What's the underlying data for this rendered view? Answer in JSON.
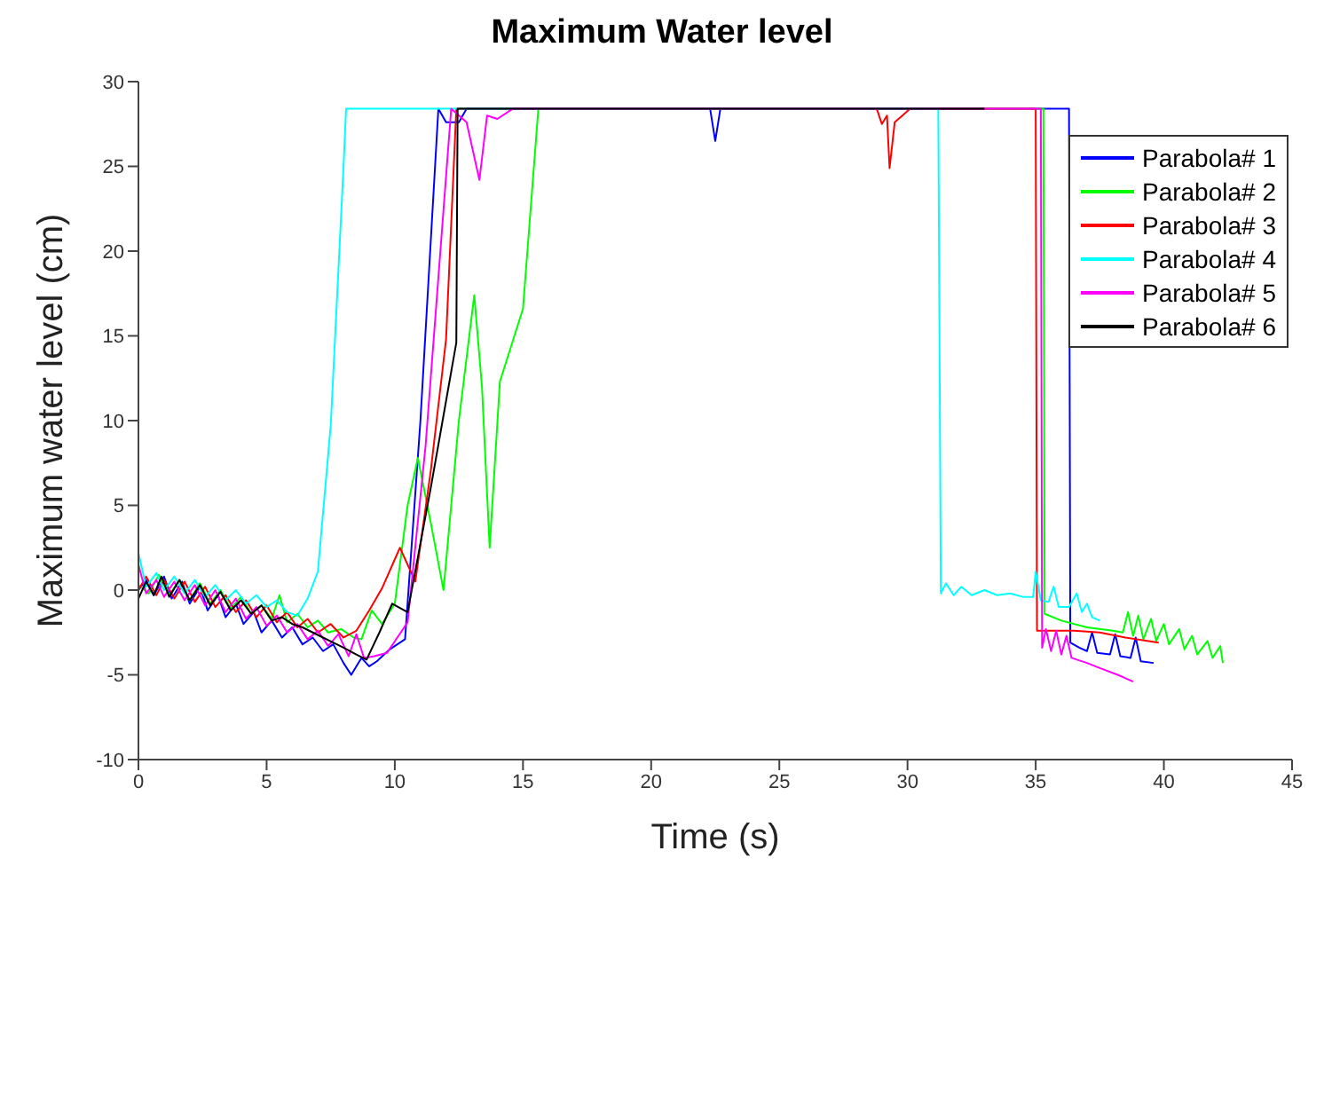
{
  "chart_data": {
    "type": "line",
    "title": "Maximum Water level",
    "xlabel": "Time (s)",
    "ylabel": "Maximum water level (cm)",
    "xlim": [
      0,
      45
    ],
    "xticks": [
      0,
      5,
      10,
      15,
      20,
      25,
      30,
      35,
      40,
      45
    ],
    "ylim": [
      -10,
      30
    ],
    "yticks": [
      -10,
      -5,
      0,
      5,
      10,
      15,
      20,
      25,
      30
    ],
    "grid": false,
    "legend": "top right",
    "marker": "none",
    "line_style": "solid",
    "series": [
      {
        "name": "Parabola# 1",
        "color": "#0000ff",
        "x": [
          0,
          0.3,
          0.6,
          1.0,
          1.3,
          1.7,
          2.0,
          2.4,
          2.7,
          3.1,
          3.4,
          3.8,
          4.1,
          4.5,
          4.8,
          5.2,
          5.6,
          6.0,
          6.4,
          6.8,
          7.2,
          7.6,
          8.0,
          8.3,
          8.7,
          9.0,
          9.3,
          9.8,
          10.4,
          11.0,
          11.7,
          12.0,
          12.5,
          12.8,
          22.3,
          22.5,
          22.7,
          36.3,
          36.35,
          36.7,
          37.0,
          37.2,
          37.4,
          37.9,
          38.1,
          38.3,
          38.7,
          38.9,
          39.1,
          39.6
        ],
        "values": [
          0,
          0.6,
          -0.3,
          0.8,
          -0.5,
          0.5,
          -0.8,
          0.2,
          -1.2,
          -0.3,
          -1.6,
          -0.8,
          -2.0,
          -1.3,
          -2.5,
          -1.8,
          -2.8,
          -2.2,
          -3.2,
          -2.8,
          -3.6,
          -3.2,
          -4.3,
          -5.0,
          -4.0,
          -4.5,
          -4.2,
          -3.5,
          -2.9,
          10,
          28.4,
          27.6,
          27.6,
          28.4,
          28.4,
          26.5,
          28.4,
          28.4,
          -3.1,
          -3.4,
          -3.6,
          -2.5,
          -3.7,
          -3.8,
          -2.6,
          -3.9,
          -4.0,
          -2.8,
          -4.2,
          -4.3
        ]
      },
      {
        "name": "Parabola# 2",
        "color": "#00ff00",
        "x": [
          0,
          0.4,
          0.8,
          1.2,
          1.6,
          2.0,
          2.4,
          2.8,
          3.2,
          3.6,
          4.0,
          4.4,
          4.8,
          5.2,
          5.5,
          5.8,
          6.2,
          6.6,
          7.0,
          7.4,
          7.9,
          8.4,
          8.7,
          9.1,
          9.5,
          10.0,
          10.5,
          10.9,
          11.4,
          11.9,
          12.5,
          13.1,
          13.4,
          13.7,
          14.1,
          15.0,
          15.6,
          35.3,
          35.35,
          36.0,
          37.0,
          38.0,
          38.4,
          38.6,
          38.8,
          39.0,
          39.2,
          39.5,
          39.7,
          40.0,
          40.2,
          40.6,
          40.8,
          41.1,
          41.3,
          41.7,
          41.9,
          42.2,
          42.3
        ],
        "values": [
          0.3,
          -0.2,
          0.9,
          -0.3,
          0.6,
          -0.6,
          0.4,
          -0.8,
          0,
          -1.1,
          -0.4,
          -1.4,
          -0.9,
          -1.7,
          -0.3,
          -1.9,
          -1.4,
          -2.2,
          -1.8,
          -2.5,
          -2.3,
          -2.8,
          -2.9,
          -1.2,
          -2.0,
          -0.8,
          5,
          7.8,
          4,
          0,
          10,
          17.4,
          12,
          2.5,
          12.3,
          16.6,
          28.4,
          28.4,
          -1.4,
          -1.8,
          -2.2,
          -2.4,
          -2.5,
          -1.3,
          -2.7,
          -1.5,
          -2.9,
          -1.7,
          -3.0,
          -2.0,
          -3.2,
          -2.3,
          -3.5,
          -2.7,
          -3.8,
          -3.0,
          -4.0,
          -3.3,
          -4.3
        ]
      },
      {
        "name": "Parabola# 3",
        "color": "#ff0000",
        "x": [
          0,
          0.3,
          0.7,
          1.0,
          1.4,
          1.8,
          2.2,
          2.6,
          3.0,
          3.4,
          3.8,
          4.2,
          4.6,
          5.0,
          5.4,
          5.8,
          6.2,
          6.6,
          7.0,
          7.5,
          8.0,
          8.5,
          9.0,
          9.5,
          10.2,
          10.8,
          11.4,
          12.0,
          12.4,
          28.8,
          29.0,
          29.2,
          29.3,
          29.5,
          29.8,
          30.1,
          35.0,
          35.05,
          36.5,
          37.5,
          38.5,
          39.8
        ],
        "values": [
          0,
          0.8,
          -0.3,
          0.6,
          -0.5,
          0.5,
          -0.7,
          0.2,
          -1.0,
          -0.3,
          -1.3,
          -0.6,
          -1.6,
          -0.9,
          -1.9,
          -1.3,
          -2.2,
          -1.7,
          -2.5,
          -2.0,
          -2.8,
          -2.4,
          -1.2,
          0.1,
          2.5,
          0.5,
          7,
          14.8,
          28.4,
          28.4,
          27.5,
          28.0,
          24.9,
          27.6,
          28.0,
          28.4,
          28.4,
          -2.4,
          -2.4,
          -2.5,
          -2.8,
          -3.1
        ]
      },
      {
        "name": "Parabola# 4",
        "color": "#00ffff",
        "x": [
          0,
          0.3,
          0.7,
          1.0,
          1.4,
          1.8,
          2.2,
          2.6,
          3.0,
          3.4,
          3.8,
          4.2,
          4.6,
          5.0,
          5.4,
          5.8,
          6.2,
          6.6,
          7.0,
          7.5,
          8.0,
          8.1,
          31.2,
          31.3,
          31.5,
          31.8,
          32.1,
          32.5,
          33.0,
          33.5,
          34.0,
          34.5,
          34.9,
          35.0,
          35.2,
          35.5,
          35.7,
          35.9,
          36.3,
          36.6,
          36.8,
          37.0,
          37.2,
          37.5
        ],
        "values": [
          2.2,
          0.2,
          1.0,
          0,
          0.8,
          -0.2,
          0.6,
          -0.4,
          0.3,
          -0.6,
          0,
          -0.8,
          -0.3,
          -1.0,
          -0.6,
          -1.3,
          -1.5,
          -0.5,
          1.1,
          9.7,
          25,
          28.4,
          28.4,
          -0.2,
          0.4,
          -0.3,
          0.2,
          -0.3,
          0,
          -0.3,
          -0.2,
          -0.4,
          -0.4,
          1.1,
          -0.6,
          -0.7,
          0.2,
          -1.0,
          -1.0,
          -0.2,
          -1.3,
          -0.8,
          -1.6,
          -1.8
        ]
      },
      {
        "name": "Parabola# 5",
        "color": "#ff00ff",
        "x": [
          0,
          0.3,
          0.7,
          1.0,
          1.4,
          1.8,
          2.2,
          2.6,
          3.0,
          3.4,
          3.8,
          4.2,
          4.6,
          5.0,
          5.4,
          5.8,
          6.2,
          6.6,
          7.0,
          7.4,
          7.8,
          8.2,
          8.5,
          8.8,
          9.2,
          9.7,
          10.5,
          11.2,
          12.2,
          12.8,
          13.3,
          13.6,
          14.0,
          14.6,
          35.2,
          35.25,
          35.4,
          35.6,
          35.8,
          36.0,
          36.2,
          36.4,
          37.0,
          37.5,
          38.2,
          38.8
        ],
        "values": [
          1.5,
          -0.2,
          0.6,
          -0.4,
          0.5,
          -0.6,
          0.3,
          -0.9,
          0,
          -1.3,
          -0.5,
          -1.7,
          -1.0,
          -2.1,
          -1.5,
          -2.5,
          -2.0,
          -2.9,
          -2.4,
          -3.3,
          -2.6,
          -3.9,
          -2.6,
          -4.0,
          -3.9,
          -3.7,
          -1.9,
          8.5,
          28.4,
          27.6,
          24.2,
          28.0,
          27.8,
          28.4,
          28.4,
          -3.4,
          -2.3,
          -3.6,
          -2.4,
          -3.8,
          -2.7,
          -4.0,
          -4.3,
          -4.6,
          -5.0,
          -5.4
        ]
      },
      {
        "name": "Parabola# 6",
        "color": "#000000",
        "x": [
          0,
          0.3,
          0.6,
          0.9,
          1.2,
          1.6,
          2.0,
          2.4,
          2.8,
          3.2,
          3.6,
          4.0,
          4.4,
          4.8,
          5.2,
          5.6,
          6.0,
          6.4,
          6.8,
          7.2,
          7.6,
          8.0,
          8.5,
          8.9,
          9.4,
          9.9,
          10.5,
          11.4,
          12.4,
          12.45,
          33.0
        ],
        "values": [
          -0.5,
          0.5,
          -0.3,
          0.8,
          -0.4,
          0.6,
          -0.6,
          0.3,
          -0.9,
          -0.1,
          -1.2,
          -0.6,
          -1.4,
          -0.9,
          -1.8,
          -1.6,
          -2.0,
          -2.2,
          -2.5,
          -2.8,
          -3.1,
          -3.4,
          -3.8,
          -4.1,
          -2.5,
          -0.8,
          -1.3,
          6,
          14.6,
          28.4,
          28.4
        ]
      }
    ]
  }
}
